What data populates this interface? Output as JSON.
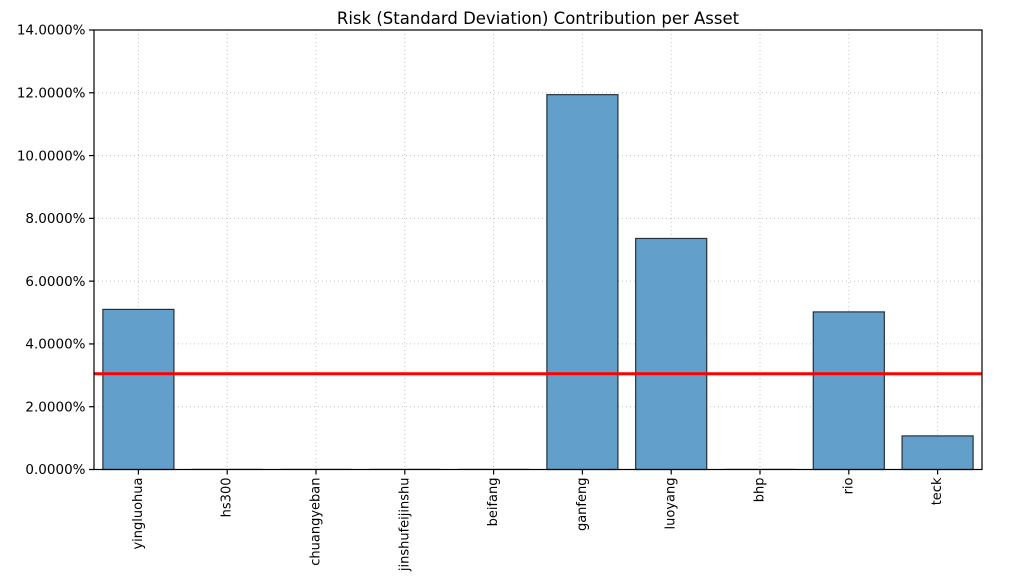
{
  "chart_data": {
    "type": "bar",
    "title": "Risk (Standard Deviation) Contribution per Asset",
    "categories": [
      "yingluohua",
      "hs300",
      "chuangyeban",
      "jinshufeijinshu",
      "beifang",
      "ganfeng",
      "luoyang",
      "bhp",
      "rio",
      "teck"
    ],
    "values": [
      5.1,
      0.02,
      0.02,
      0.02,
      0.02,
      11.94,
      7.36,
      0.02,
      5.02,
      1.07
    ],
    "unit": "%",
    "xlabel": "",
    "ylabel": "",
    "ylim": [
      0,
      14
    ],
    "ytick_step": 2,
    "ytick_labels": [
      "0.0000%",
      "2.0000%",
      "4.0000%",
      "6.0000%",
      "8.0000%",
      "10.0000%",
      "12.0000%",
      "14.0000%"
    ],
    "xtick_rotation": 90,
    "grid": {
      "visible": true,
      "style": "dotted",
      "axes": "both",
      "color": "#c3c3c3"
    },
    "legend": "none",
    "reference_line": {
      "value": 3.05,
      "color": "#ff0000",
      "width": 3,
      "orientation": "horizontal"
    },
    "colors": {
      "bar_fill": "#62A0CB",
      "bar_edge": "#25313c",
      "near_zero_bar": "#bcbcbc",
      "axis": "#000000",
      "text": "#000000",
      "background": "#ffffff"
    }
  }
}
